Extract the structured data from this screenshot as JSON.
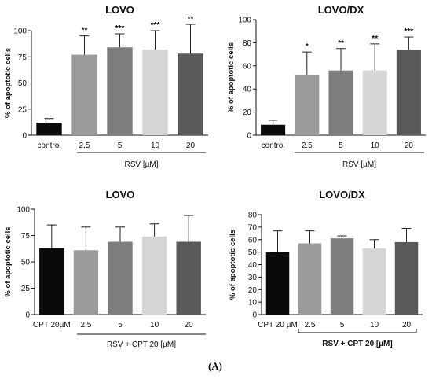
{
  "colors": {
    "control": "#0a0a0a",
    "c2_5": "#9b9b9e",
    "c5": "#7d7d80",
    "c10": "#d5d5d6",
    "c20": "#59595b"
  },
  "caption": "(A)",
  "chart_data": [
    {
      "type": "bar",
      "title": "LOVO",
      "ylabel": "% of apoptotic cells",
      "ylim": [
        0,
        100
      ],
      "yticks": [
        "0",
        "25",
        "50",
        "75",
        "100"
      ],
      "categories": [
        "control",
        "2.5",
        "5",
        "10",
        "20"
      ],
      "values": [
        12,
        77,
        84,
        82,
        78
      ],
      "errors": [
        4,
        18,
        13,
        18,
        28
      ],
      "significance": [
        "",
        "**",
        "***",
        "***",
        "**"
      ],
      "group_label": "RSV [µM]"
    },
    {
      "type": "bar",
      "title": "LOVO/DX",
      "ylabel": "% of apoptotic cells",
      "ylim": [
        0,
        100
      ],
      "yticks": [
        "0",
        "20",
        "40",
        "60",
        "80",
        "100"
      ],
      "categories": [
        "control",
        "2.5",
        "5",
        "10",
        "20"
      ],
      "values": [
        9,
        52,
        56,
        56,
        74
      ],
      "errors": [
        4,
        20,
        19,
        23,
        11
      ],
      "significance": [
        "",
        "*",
        "**",
        "**",
        "***"
      ],
      "group_label": "RSV [µM]"
    },
    {
      "type": "bar",
      "title": "LOVO",
      "ylabel": "% of apoptotic cells",
      "ylim": [
        0,
        100
      ],
      "yticks": [
        "0",
        "25",
        "50",
        "75",
        "100"
      ],
      "categories": [
        "CPT 20µM",
        "2.5",
        "5",
        "10",
        "20"
      ],
      "values": [
        63,
        61,
        69,
        74,
        69
      ],
      "errors": [
        22,
        22,
        14,
        12,
        25
      ],
      "significance": [
        "",
        "",
        "",
        "",
        ""
      ],
      "group_label": "RSV + CPT 20 [µM]"
    },
    {
      "type": "bar",
      "title": "LOVO/DX",
      "ylabel": "% of apoptotic cells",
      "ylim": [
        0,
        80
      ],
      "yticks": [
        "0",
        "10",
        "20",
        "30",
        "40",
        "50",
        "60",
        "70",
        "80"
      ],
      "categories": [
        "CPT 20 µM",
        "2.5",
        "5",
        "10",
        "20"
      ],
      "values": [
        50,
        57,
        61,
        53,
        58
      ],
      "errors": [
        17,
        10,
        2,
        7,
        11
      ],
      "significance": [
        "",
        "",
        "",
        "",
        ""
      ],
      "group_label": "RSV + CPT 20 [µM]"
    }
  ]
}
